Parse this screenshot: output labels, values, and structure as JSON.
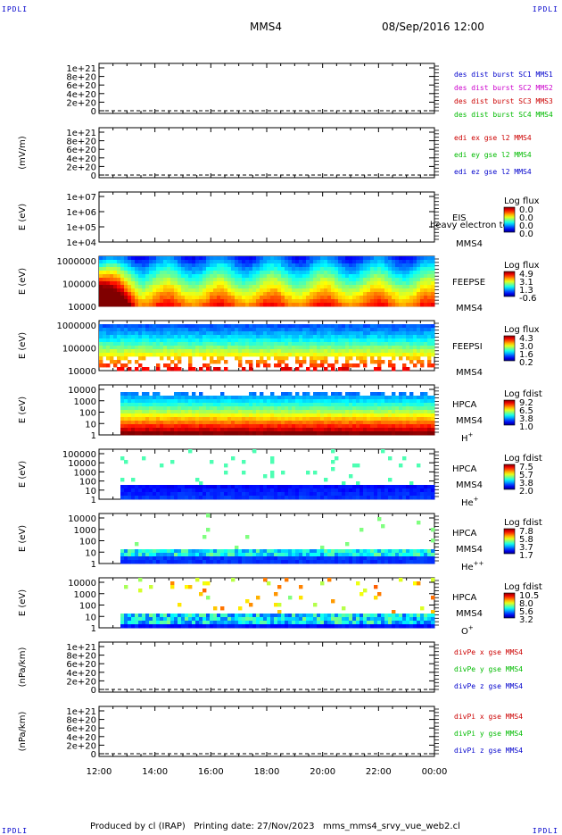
{
  "corner_marks": {
    "top_left": "IPDLI",
    "top_right": "IPDLI",
    "bottom_left": "IPDLI",
    "bottom_right": "IPDLI"
  },
  "header": {
    "spacecraft": "MMS4",
    "datetime": "08/Sep/2016 12:00"
  },
  "footer": {
    "text": "Produced by cl (IRAP)   Printing date: 27/Nov/2023   mms_mms4_srvy_vue_web2.cl"
  },
  "colors": {
    "red": "#cc0000",
    "magenta": "#cc00cc",
    "green": "#00bb00",
    "blue": "#0000cc",
    "axis": "#000000"
  },
  "chart_data": {
    "type": "heatmap",
    "x_axis": {
      "ticks": [
        "12:00",
        "14:00",
        "16:00",
        "18:00",
        "20:00",
        "22:00",
        "00:00"
      ],
      "range": [
        "12:00",
        "00:00"
      ]
    },
    "panels": [
      {
        "type": "line",
        "ylabel": "",
        "ticks": [
          "1e+21",
          "8e+20",
          "6e+20",
          "4e+20",
          "2e+20",
          "0"
        ],
        "legend": [
          {
            "text": "des dist burst SC1 MMS1",
            "color": "blue"
          },
          {
            "text": "des dist burst SC2 MMS2",
            "color": "magenta"
          },
          {
            "text": "des dist burst SC3 MMS3",
            "color": "red"
          },
          {
            "text": "des dist burst SC4 MMS4",
            "color": "green"
          }
        ]
      },
      {
        "type": "line",
        "ylabel": "(mV/m)",
        "ticks": [
          "1e+21",
          "8e+20",
          "6e+20",
          "4e+20",
          "2e+20",
          "0"
        ],
        "legend": [
          {
            "text": "edi ex gse l2 MMS4",
            "color": "red"
          },
          {
            "text": "edi ey gse l2 MMS4",
            "color": "green"
          },
          {
            "text": "edi ez gse l2 MMS4",
            "color": "blue"
          }
        ]
      },
      {
        "type": "spectrogram",
        "ylabel": "E (eV)",
        "ticks": [
          "1e+07",
          "1e+06",
          "1e+05",
          "1e+04"
        ],
        "label1": "EIS",
        "label2": "MMS4",
        "overlay": "heavy electron to",
        "cb_title": "Log flux",
        "cb_ticks": [
          "0.0",
          "0.0",
          "0.0",
          "0.0"
        ],
        "fill": "none"
      },
      {
        "type": "spectrogram",
        "ylabel": "E (eV)",
        "ticks": [
          "1000000",
          "100000",
          "10000"
        ],
        "label1": "FEEPSE",
        "label2": "MMS4",
        "cb_title": "Log flux",
        "cb_ticks": [
          "4.9",
          "3.1",
          "1.3",
          "-0.6"
        ],
        "fill": "feepse"
      },
      {
        "type": "spectrogram",
        "ylabel": "E (eV)",
        "ticks": [
          "1000000",
          "100000",
          "10000"
        ],
        "label1": "FEEPSI",
        "label2": "MMS4",
        "cb_title": "Log flux",
        "cb_ticks": [
          "4.3",
          "3.0",
          "1.6",
          "0.2"
        ],
        "fill": "feepsi"
      },
      {
        "type": "spectrogram",
        "ylabel": "E (eV)",
        "ticks": [
          "10000",
          "1000",
          "100",
          "10",
          "1"
        ],
        "label1": "HPCA",
        "label2": "MMS4",
        "species": "H",
        "charge": "+",
        "cb_title": "Log fdist",
        "cb_ticks": [
          "9.2",
          "6.5",
          "3.8",
          "1.0"
        ],
        "fill": "h"
      },
      {
        "type": "spectrogram",
        "ylabel": "E (eV)",
        "ticks": [
          "100000",
          "10000",
          "1000",
          "100",
          "10",
          "1"
        ],
        "label1": "HPCA",
        "label2": "MMS4",
        "species": "He",
        "charge": "+",
        "cb_title": "Log fdist",
        "cb_ticks": [
          "7.5",
          "5.7",
          "3.8",
          "2.0"
        ],
        "fill": "he"
      },
      {
        "type": "spectrogram",
        "ylabel": "E (eV)",
        "ticks": [
          "10000",
          "1000",
          "100",
          "10",
          "1"
        ],
        "label1": "HPCA",
        "label2": "MMS4",
        "species": "He",
        "charge": "++",
        "cb_title": "Log fdist",
        "cb_ticks": [
          "7.8",
          "5.8",
          "3.7",
          "1.7"
        ],
        "fill": "hepp"
      },
      {
        "type": "spectrogram",
        "ylabel": "E (eV)",
        "ticks": [
          "10000",
          "1000",
          "100",
          "10",
          "1"
        ],
        "label1": "HPCA",
        "label2": "MMS4",
        "species": "O",
        "charge": "+",
        "cb_title": "Log fdist",
        "cb_ticks": [
          "10.5",
          "8.0",
          "5.6",
          "3.2"
        ],
        "fill": "o"
      },
      {
        "type": "line",
        "ylabel": "(nPa/km)",
        "ticks": [
          "1e+21",
          "8e+20",
          "6e+20",
          "4e+20",
          "2e+20",
          "0"
        ],
        "legend": [
          {
            "text": "divPe x gse MMS4",
            "color": "red"
          },
          {
            "text": "divPe y gse MMS4",
            "color": "green"
          },
          {
            "text": "divPe z gse MMS4",
            "color": "blue"
          }
        ]
      },
      {
        "type": "line",
        "ylabel": "(nPa/km)",
        "ticks": [
          "1e+21",
          "8e+20",
          "6e+20",
          "4e+20",
          "2e+20",
          "0"
        ],
        "legend": [
          {
            "text": "divPi x gse MMS4",
            "color": "red"
          },
          {
            "text": "divPi y gse MMS4",
            "color": "green"
          },
          {
            "text": "divPi z gse MMS4",
            "color": "blue"
          }
        ]
      }
    ]
  }
}
